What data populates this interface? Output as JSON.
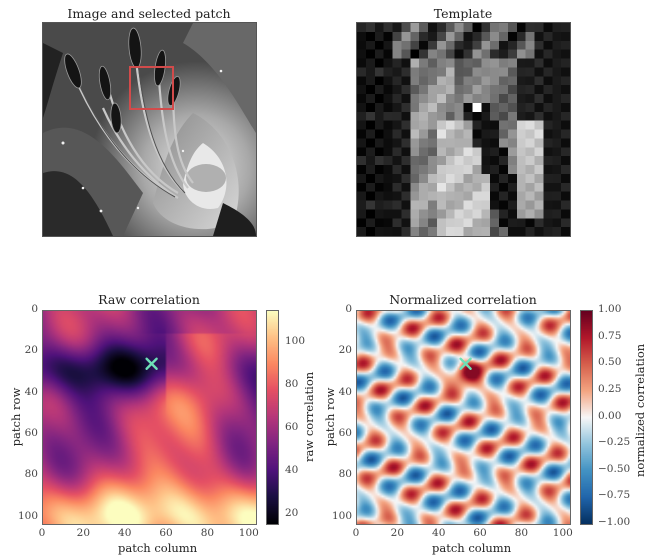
{
  "chart_data": [
    {
      "type": "image",
      "title": "Image and selected patch",
      "colormap": "gray",
      "patch_box": {
        "row": [
          28,
          52
        ],
        "col": [
          48,
          72
        ],
        "color": "#d24b4b"
      }
    },
    {
      "type": "image",
      "title": "Template",
      "colormap": "gray"
    },
    {
      "type": "heatmap",
      "title": "Raw correlation",
      "xlabel": "patch column",
      "ylabel": "patch row",
      "xlim": [
        0,
        103
      ],
      "ylim": [
        103,
        0
      ],
      "xticks": [
        "0",
        "20",
        "40",
        "60",
        "80",
        "100"
      ],
      "yticks": [
        "0",
        "20",
        "40",
        "60",
        "80",
        "100"
      ],
      "colormap": "magma",
      "colorbar": {
        "label": "raw correlation",
        "min": 16,
        "max": 115,
        "ticks": [
          "100",
          "80",
          "60",
          "40",
          "20"
        ]
      },
      "marker": {
        "x": 53,
        "y": 26,
        "symbol": "x",
        "color": "#6fe0b7"
      }
    },
    {
      "type": "heatmap",
      "title": "Normalized correlation",
      "xlabel": "patch column",
      "ylabel": "patch row",
      "xlim": [
        0,
        103
      ],
      "ylim": [
        103,
        0
      ],
      "xticks": [
        "0",
        "20",
        "40",
        "60",
        "80",
        "100"
      ],
      "yticks": [
        "0",
        "20",
        "40",
        "60",
        "80",
        "100"
      ],
      "colormap": "RdBu_r",
      "colorbar": {
        "label": "normalized correlation",
        "min": -1.0,
        "max": 1.0,
        "ticks": [
          "1.00",
          "0.75",
          "0.50",
          "0.25",
          "0.00",
          "−0.25",
          "−0.50",
          "−0.75",
          "−1.00"
        ]
      },
      "marker": {
        "x": 53,
        "y": 26,
        "symbol": "x",
        "color": "#6fe0b7"
      }
    }
  ]
}
